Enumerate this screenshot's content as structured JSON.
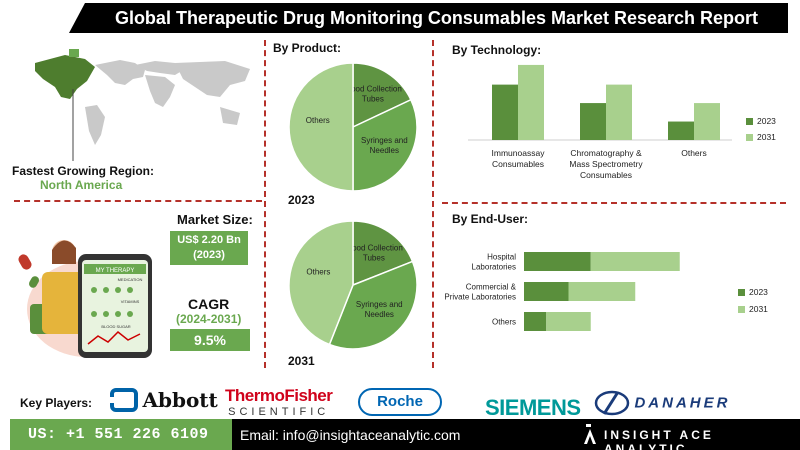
{
  "header": {
    "title": "Global Therapeutic Drug Monitoring Consumables Market Research Report"
  },
  "region": {
    "label": "Fastest Growing Region:",
    "value": "North America"
  },
  "market_size": {
    "label": "Market Size:",
    "value_line1": "US$ 2.20 Bn",
    "value_line2": "(2023)"
  },
  "cagr": {
    "label": "CAGR",
    "period": "(2024-2031)",
    "value": "9.5%"
  },
  "illustration": {
    "phone_title": "MY THERAPY",
    "medication": "MEDICATION",
    "vitamins": "VITAMINS",
    "blood_sugar": "BLOOD SUGAR"
  },
  "key_players": {
    "label": "Key Players:",
    "logos": [
      "Abbott",
      "ThermoFisher",
      "SCIENTIFIC",
      "Roche",
      "SIEMENS",
      "DANAHER"
    ]
  },
  "footer": {
    "phone": "US: +1 551 226 6109",
    "email": "Email: info@insightaceanalytic.com",
    "brand": "INSIGHT ACE ANALYTIC"
  },
  "colors": {
    "accent_green": "#6aa84f",
    "dark_green": "#5a8f3c",
    "light_green": "#a8d08d",
    "divider_red": "#b5312a"
  },
  "chart_data": [
    {
      "type": "pie",
      "title": "By Product:",
      "label": "2023",
      "slices": [
        {
          "name": "Blood Collection Tubes",
          "value": 18
        },
        {
          "name": "Syringes and Needles",
          "value": 32
        },
        {
          "name": "Others",
          "value": 50
        }
      ]
    },
    {
      "type": "pie",
      "label": "2031",
      "slices": [
        {
          "name": "Blood Collection Tubes",
          "value": 19
        },
        {
          "name": "Syringes and Needles",
          "value": 37
        },
        {
          "name": "Others",
          "value": 44
        }
      ]
    },
    {
      "type": "bar",
      "title": "By Technology:",
      "categories": [
        "Immunoassay Consumables",
        "Chromatography & Mass Spectrometry Consumables",
        "Others"
      ],
      "category_lines": [
        [
          "Immunoassay",
          "Consumables"
        ],
        [
          "Chromatography &",
          "Mass Spectrometry",
          "Consumables"
        ],
        [
          "Others"
        ]
      ],
      "series": [
        {
          "name": "2023",
          "values": [
            45,
            30,
            15
          ]
        },
        {
          "name": "2031",
          "values": [
            61,
            45,
            30
          ]
        }
      ],
      "ylim": [
        0,
        65
      ],
      "grid": false,
      "legend": "right"
    },
    {
      "type": "bar",
      "orientation": "horizontal",
      "stacked": true,
      "title": "By End-User:",
      "categories": [
        "Hospital Laboratories",
        "Commercial & Private Laboratories",
        "Others"
      ],
      "category_lines": [
        [
          "Hospital",
          "Laboratories"
        ],
        [
          "Commercial &",
          "Private Laboratories"
        ],
        [
          "Others"
        ]
      ],
      "series": [
        {
          "name": "2023",
          "values": [
            30,
            20,
            10
          ]
        },
        {
          "name": "2031",
          "values": [
            40,
            30,
            20
          ]
        }
      ],
      "xlim": [
        0,
        80
      ],
      "grid": false,
      "legend": "right"
    }
  ]
}
